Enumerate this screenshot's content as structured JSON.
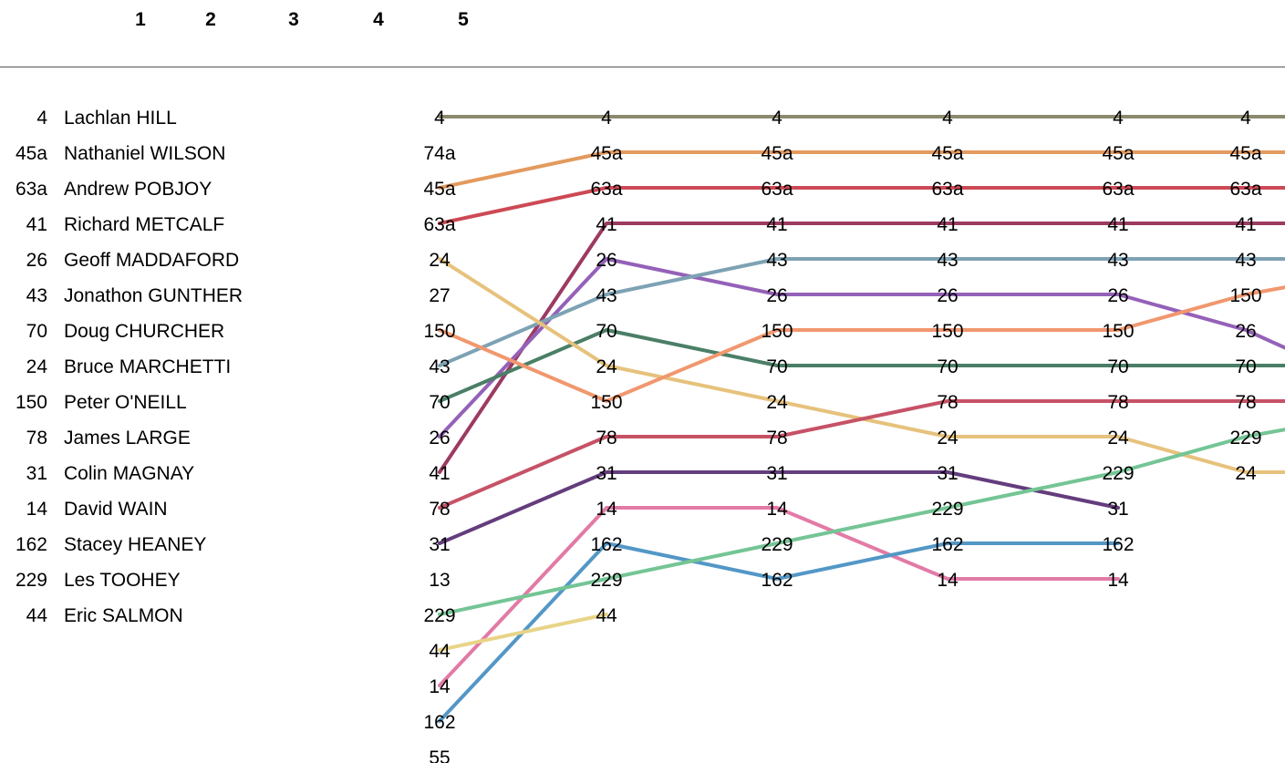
{
  "header": {
    "laps": [
      "1",
      "2",
      "3",
      "4",
      "5"
    ]
  },
  "chart_data": {
    "type": "line",
    "description": "Position chart (lap chart): rank of each competitor at the end of each lap",
    "title": "",
    "xlabel": "",
    "ylabel": "",
    "standings": [
      {
        "number": "4",
        "name": "Lachlan HILL"
      },
      {
        "number": "45a",
        "name": "Nathaniel WILSON"
      },
      {
        "number": "63a",
        "name": "Andrew POBJOY"
      },
      {
        "number": "41",
        "name": "Richard METCALF"
      },
      {
        "number": "26",
        "name": "Geoff MADDAFORD"
      },
      {
        "number": "43",
        "name": "Jonathon GUNTHER"
      },
      {
        "number": "70",
        "name": "Doug CHURCHER"
      },
      {
        "number": "24",
        "name": "Bruce MARCHETTI"
      },
      {
        "number": "150",
        "name": "Peter O'NEILL"
      },
      {
        "number": "78",
        "name": "James LARGE"
      },
      {
        "number": "31",
        "name": "Colin MAGNAY"
      },
      {
        "number": "14",
        "name": "David WAIN"
      },
      {
        "number": "162",
        "name": "Stacey HEANEY"
      },
      {
        "number": "229",
        "name": "Les TOOHEY"
      },
      {
        "number": "44",
        "name": "Eric SALMON"
      }
    ],
    "columns": [
      [
        "4",
        "74a",
        "45a",
        "63a",
        "24",
        "27",
        "150",
        "43",
        "70",
        "26",
        "41",
        "78",
        "31",
        "13",
        "229",
        "44",
        "14",
        "162",
        "55"
      ],
      [
        "4",
        "45a",
        "63a",
        "41",
        "26",
        "43",
        "70",
        "24",
        "150",
        "78",
        "31",
        "14",
        "162",
        "229",
        "44"
      ],
      [
        "4",
        "45a",
        "63a",
        "41",
        "43",
        "26",
        "150",
        "70",
        "24",
        "78",
        "31",
        "14",
        "229",
        "162"
      ],
      [
        "4",
        "45a",
        "63a",
        "41",
        "43",
        "26",
        "150",
        "70",
        "78",
        "24",
        "31",
        "229",
        "162",
        "14"
      ],
      [
        "4",
        "45a",
        "63a",
        "41",
        "43",
        "26",
        "150",
        "70",
        "78",
        "24",
        "229",
        "31",
        "162",
        "14"
      ],
      [
        "4",
        "45a",
        "63a",
        "41",
        "43",
        "150",
        "26",
        "70",
        "78",
        "229",
        "24"
      ]
    ],
    "series": [
      {
        "name": "4",
        "color": "#8c8a6e",
        "positions": [
          1,
          1,
          1,
          1,
          1,
          1,
          1
        ]
      },
      {
        "name": "45a",
        "color": "#e39a5e",
        "positions": [
          3,
          2,
          2,
          2,
          2,
          2,
          2
        ]
      },
      {
        "name": "63a",
        "color": "#cc4a55",
        "positions": [
          4,
          3,
          3,
          3,
          3,
          3,
          3
        ]
      },
      {
        "name": "41",
        "color": "#9c3a62",
        "positions": [
          11,
          4,
          4,
          4,
          4,
          4,
          4
        ]
      },
      {
        "name": "26",
        "color": "#9461b8",
        "positions": [
          10,
          5,
          6,
          6,
          6,
          7,
          7.5
        ]
      },
      {
        "name": "43",
        "color": "#7da2b4",
        "positions": [
          8,
          6,
          5,
          5,
          5,
          5,
          5
        ]
      },
      {
        "name": "70",
        "color": "#4a7f66",
        "positions": [
          9,
          7,
          8,
          8,
          8,
          8,
          8
        ]
      },
      {
        "name": "24",
        "color": "#e6c27c",
        "positions": [
          5,
          8,
          9,
          10,
          10,
          11,
          11
        ]
      },
      {
        "name": "150",
        "color": "#f1976e",
        "positions": [
          7,
          9,
          7,
          7,
          7,
          6,
          5.8
        ]
      },
      {
        "name": "78",
        "color": "#c65266",
        "positions": [
          12,
          10,
          10,
          9,
          9,
          9,
          9
        ]
      },
      {
        "name": "31",
        "color": "#643d7d",
        "positions": [
          13,
          11,
          11,
          11,
          12
        ]
      },
      {
        "name": "14",
        "color": "#e27aa6",
        "positions": [
          17,
          12,
          12,
          14,
          14
        ]
      },
      {
        "name": "162",
        "color": "#5397c6",
        "positions": [
          18,
          13,
          14,
          13,
          13
        ]
      },
      {
        "name": "229",
        "color": "#74c595",
        "positions": [
          15,
          14,
          13,
          12,
          11,
          10,
          9.8
        ]
      },
      {
        "name": "44",
        "color": "#e8d488",
        "positions": [
          16,
          15
        ]
      }
    ]
  }
}
